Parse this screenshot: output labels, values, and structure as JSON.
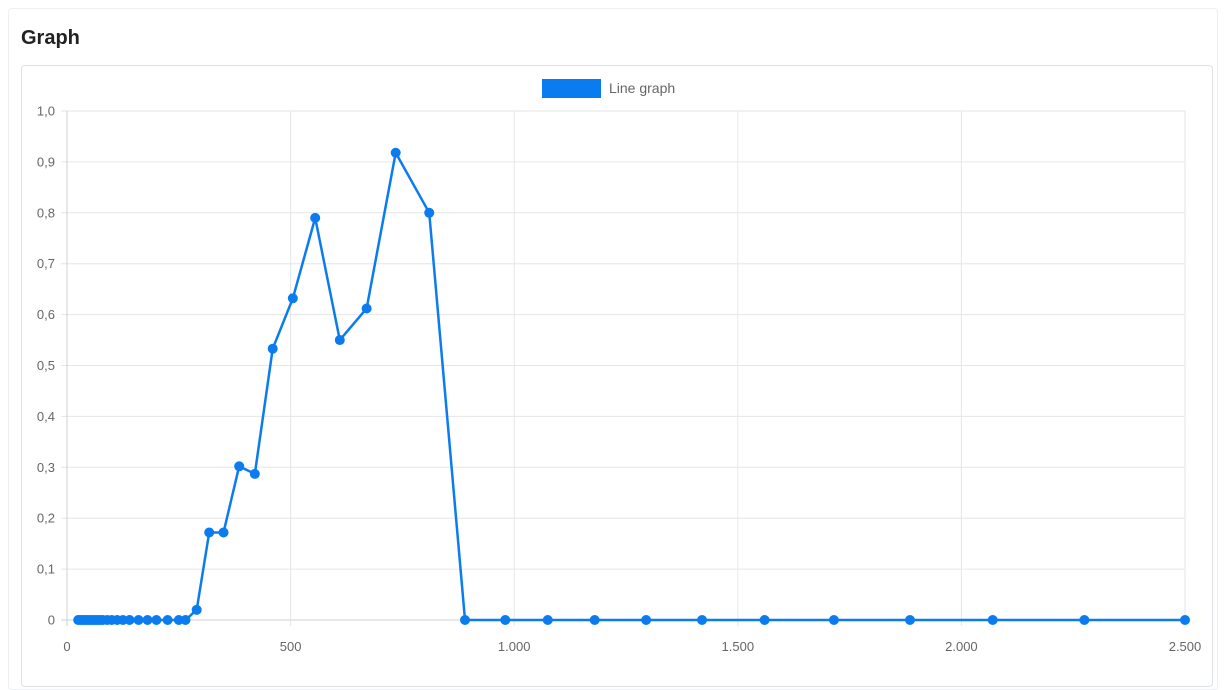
{
  "panel": {
    "title": "Graph"
  },
  "chart_data": {
    "type": "line",
    "title": "",
    "xlabel": "",
    "ylabel": "",
    "xlim": [
      0,
      2500
    ],
    "ylim": [
      0,
      1.0
    ],
    "x_ticks": [
      "0",
      "500",
      "1.000",
      "1.500",
      "2.000",
      "2.500"
    ],
    "y_ticks": [
      "0",
      "0,1",
      "0,2",
      "0,3",
      "0,4",
      "0,5",
      "0,6",
      "0,7",
      "0,8",
      "0,9",
      "1,0"
    ],
    "grid": true,
    "legend_position": "top",
    "series": [
      {
        "name": "Line graph",
        "color": "#0a7cf0",
        "x": [
          25,
          30,
          35,
          40,
          45,
          50,
          55,
          60,
          65,
          70,
          75,
          80,
          90,
          100,
          112,
          125,
          140,
          160,
          180,
          200,
          225,
          250,
          265,
          290,
          318,
          350,
          385,
          420,
          460,
          505,
          555,
          610,
          670,
          735,
          810,
          890,
          980,
          1075,
          1180,
          1295,
          1420,
          1560,
          1715,
          1885,
          2070,
          2275,
          2500
        ],
        "y": [
          0,
          0,
          0,
          0,
          0,
          0,
          0,
          0,
          0,
          0,
          0,
          0,
          0,
          0,
          0,
          0,
          0,
          0,
          0,
          0,
          0,
          0,
          0,
          0.02,
          0.172,
          0.172,
          0.302,
          0.287,
          0.533,
          0.632,
          0.79,
          0.55,
          0.612,
          0.918,
          0.8,
          0,
          0,
          0,
          0,
          0,
          0,
          0,
          0,
          0,
          0,
          0,
          0
        ]
      }
    ]
  }
}
